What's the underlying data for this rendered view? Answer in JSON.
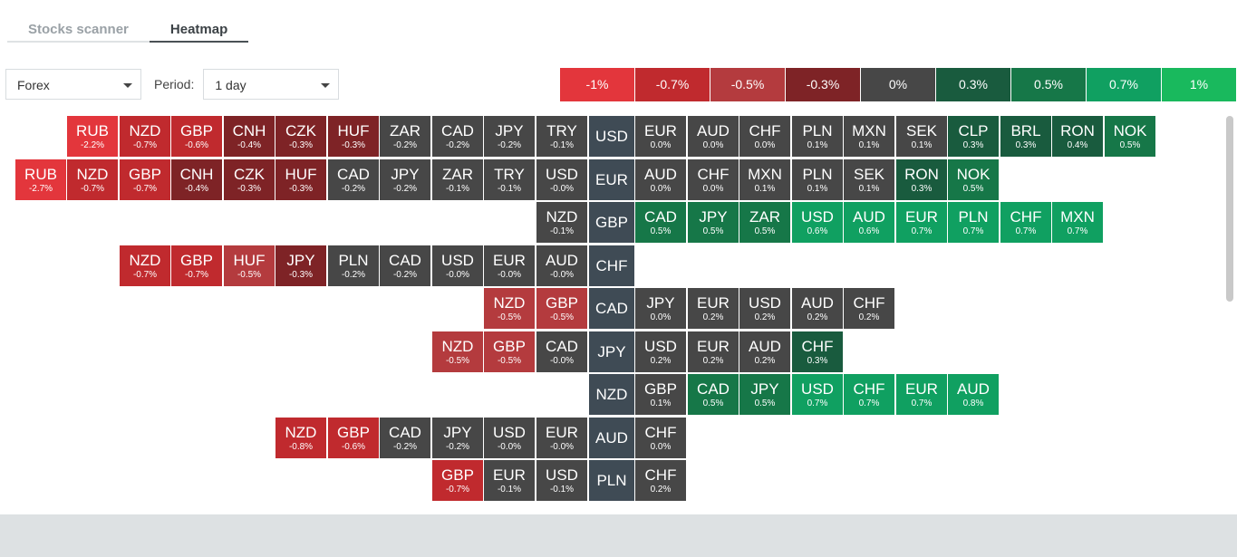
{
  "tabs": [
    {
      "label": "Stocks scanner",
      "active": false
    },
    {
      "label": "Heatmap",
      "active": true
    }
  ],
  "market_select": {
    "value": "Forex"
  },
  "period": {
    "label": "Period:",
    "value": "1 day"
  },
  "legend": [
    {
      "label": "-1%",
      "color": "#e3363c"
    },
    {
      "label": "-0.7%",
      "color": "#c02a2e"
    },
    {
      "label": "-0.5%",
      "color": "#b43b3e"
    },
    {
      "label": "-0.3%",
      "color": "#7e2326"
    },
    {
      "label": "0%",
      "color": "#474747"
    },
    {
      "label": "0.3%",
      "color": "#195b3e"
    },
    {
      "label": "0.5%",
      "color": "#167748"
    },
    {
      "label": "0.7%",
      "color": "#10a061"
    },
    {
      "label": "1%",
      "color": "#19b95d"
    }
  ],
  "heatmap_rows": [
    {
      "base": "USD",
      "left": [
        [
          "RUB",
          "-2.2%"
        ],
        [
          "NZD",
          "-0.7%"
        ],
        [
          "GBP",
          "-0.6%"
        ],
        [
          "CNH",
          "-0.4%"
        ],
        [
          "CZK",
          "-0.3%"
        ],
        [
          "HUF",
          "-0.3%"
        ],
        [
          "ZAR",
          "-0.2%"
        ],
        [
          "CAD",
          "-0.2%"
        ],
        [
          "JPY",
          "-0.2%"
        ],
        [
          "TRY",
          "-0.1%"
        ]
      ],
      "right": [
        [
          "EUR",
          "0.0%"
        ],
        [
          "AUD",
          "0.0%"
        ],
        [
          "CHF",
          "0.0%"
        ],
        [
          "PLN",
          "0.1%"
        ],
        [
          "MXN",
          "0.1%"
        ],
        [
          "SEK",
          "0.1%"
        ],
        [
          "CLP",
          "0.3%"
        ],
        [
          "BRL",
          "0.3%"
        ],
        [
          "RON",
          "0.4%"
        ],
        [
          "NOK",
          "0.5%"
        ]
      ]
    },
    {
      "base": "EUR",
      "left": [
        [
          "RUB",
          "-2.7%"
        ],
        [
          "NZD",
          "-0.7%"
        ],
        [
          "GBP",
          "-0.7%"
        ],
        [
          "CNH",
          "-0.4%"
        ],
        [
          "CZK",
          "-0.3%"
        ],
        [
          "HUF",
          "-0.3%"
        ],
        [
          "CAD",
          "-0.2%"
        ],
        [
          "JPY",
          "-0.2%"
        ],
        [
          "ZAR",
          "-0.1%"
        ],
        [
          "TRY",
          "-0.1%"
        ],
        [
          "USD",
          "-0.0%"
        ]
      ],
      "right": [
        [
          "AUD",
          "0.0%"
        ],
        [
          "CHF",
          "0.0%"
        ],
        [
          "MXN",
          "0.1%"
        ],
        [
          "PLN",
          "0.1%"
        ],
        [
          "SEK",
          "0.1%"
        ],
        [
          "RON",
          "0.3%"
        ],
        [
          "NOK",
          "0.5%"
        ]
      ]
    },
    {
      "base": "GBP",
      "left": [
        [
          "NZD",
          "-0.1%"
        ]
      ],
      "right": [
        [
          "CAD",
          "0.5%"
        ],
        [
          "JPY",
          "0.5%"
        ],
        [
          "ZAR",
          "0.5%"
        ],
        [
          "USD",
          "0.6%"
        ],
        [
          "AUD",
          "0.6%"
        ],
        [
          "EUR",
          "0.7%"
        ],
        [
          "PLN",
          "0.7%"
        ],
        [
          "CHF",
          "0.7%"
        ],
        [
          "MXN",
          "0.7%"
        ]
      ]
    },
    {
      "base": "CHF",
      "left": [
        [
          "NZD",
          "-0.7%"
        ],
        [
          "GBP",
          "-0.7%"
        ],
        [
          "HUF",
          "-0.5%"
        ],
        [
          "JPY",
          "-0.3%"
        ],
        [
          "PLN",
          "-0.2%"
        ],
        [
          "CAD",
          "-0.2%"
        ],
        [
          "USD",
          "-0.0%"
        ],
        [
          "EUR",
          "-0.0%"
        ],
        [
          "AUD",
          "-0.0%"
        ]
      ],
      "right": []
    },
    {
      "base": "CAD",
      "left": [
        [
          "NZD",
          "-0.5%"
        ],
        [
          "GBP",
          "-0.5%"
        ]
      ],
      "right": [
        [
          "JPY",
          "0.0%"
        ],
        [
          "EUR",
          "0.2%"
        ],
        [
          "USD",
          "0.2%"
        ],
        [
          "AUD",
          "0.2%"
        ],
        [
          "CHF",
          "0.2%"
        ]
      ]
    },
    {
      "base": "JPY",
      "left": [
        [
          "NZD",
          "-0.5%"
        ],
        [
          "GBP",
          "-0.5%"
        ],
        [
          "CAD",
          "-0.0%"
        ]
      ],
      "right": [
        [
          "USD",
          "0.2%"
        ],
        [
          "EUR",
          "0.2%"
        ],
        [
          "AUD",
          "0.2%"
        ],
        [
          "CHF",
          "0.3%"
        ]
      ]
    },
    {
      "base": "NZD",
      "left": [],
      "right": [
        [
          "GBP",
          "0.1%"
        ],
        [
          "CAD",
          "0.5%"
        ],
        [
          "JPY",
          "0.5%"
        ],
        [
          "USD",
          "0.7%"
        ],
        [
          "CHF",
          "0.7%"
        ],
        [
          "EUR",
          "0.7%"
        ],
        [
          "AUD",
          "0.8%"
        ]
      ]
    },
    {
      "base": "AUD",
      "left": [
        [
          "NZD",
          "-0.8%"
        ],
        [
          "GBP",
          "-0.6%"
        ],
        [
          "CAD",
          "-0.2%"
        ],
        [
          "JPY",
          "-0.2%"
        ],
        [
          "USD",
          "-0.0%"
        ],
        [
          "EUR",
          "-0.0%"
        ]
      ],
      "right": [
        [
          "CHF",
          "0.0%"
        ]
      ]
    },
    {
      "base": "PLN",
      "left": [
        [
          "GBP",
          "-0.7%"
        ],
        [
          "EUR",
          "-0.1%"
        ],
        [
          "USD",
          "-0.1%"
        ]
      ],
      "right": [
        [
          "CHF",
          "0.2%"
        ]
      ]
    }
  ]
}
